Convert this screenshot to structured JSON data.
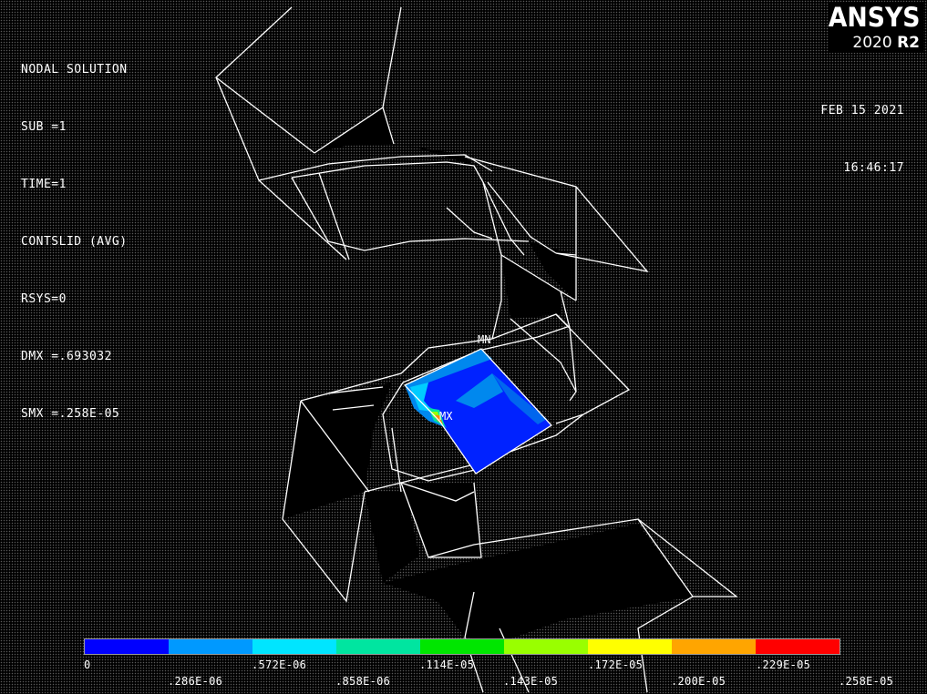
{
  "header": {
    "lines": [
      "NODAL SOLUTION",
      "SUB =1",
      "TIME=1",
      "CONTSLID (AVG)",
      "RSYS=0",
      "DMX =.693032",
      "SMX =.258E-05"
    ]
  },
  "logo": {
    "name": "ANSYS",
    "version": "2020",
    "release": "R2"
  },
  "timestamp": {
    "date": "FEB 15 2021",
    "time": "16:46:17"
  },
  "markers": {
    "min": "MN",
    "max": "MX"
  },
  "legend": {
    "colors": [
      "#0000ff",
      "#0099ff",
      "#00e5ff",
      "#00e5a0",
      "#00e600",
      "#99ff00",
      "#ffff00",
      "#ffa500",
      "#ff0000"
    ],
    "upper_labels": [
      "0",
      ".572E-06",
      ".114E-05",
      ".172E-05",
      ".229E-05"
    ],
    "lower_labels": [
      ".286E-06",
      ".858E-06",
      ".143E-05",
      ".200E-05",
      ".258E-05"
    ]
  }
}
